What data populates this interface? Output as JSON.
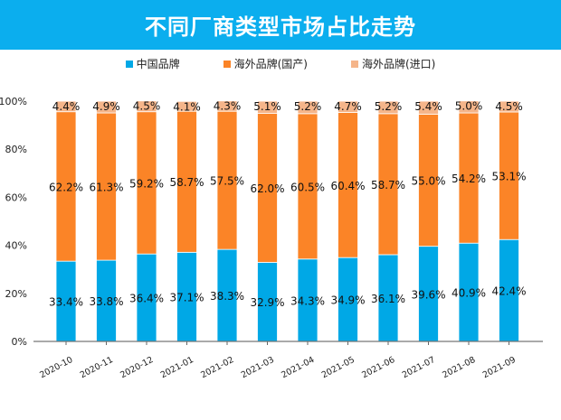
{
  "chart_data": {
    "type": "bar",
    "stacked": true,
    "title": "不同厂商类型市场占比走势",
    "xlabel": "",
    "ylabel": "",
    "ylim": [
      0,
      100
    ],
    "yticks": [
      "0%",
      "20%",
      "40%",
      "60%",
      "80%",
      "100%"
    ],
    "legend_position": "top",
    "grid": false,
    "categories": [
      "2020-10",
      "2020-11",
      "2020-12",
      "2021-01",
      "2021-02",
      "2021-03",
      "2021-04",
      "2021-05",
      "2021-06",
      "2021-07",
      "2021-08",
      "2021-09"
    ],
    "series": [
      {
        "name": "中国品牌",
        "color": "#00A8E6",
        "values": [
          33.4,
          33.8,
          36.4,
          37.1,
          38.3,
          32.9,
          34.3,
          34.9,
          36.1,
          39.6,
          40.9,
          42.4
        ]
      },
      {
        "name": "海外品牌(国产)",
        "color": "#FB8427",
        "values": [
          62.2,
          61.3,
          59.2,
          58.7,
          57.5,
          62.0,
          60.5,
          60.4,
          58.7,
          55.0,
          54.2,
          53.1
        ]
      },
      {
        "name": "海外品牌(进口)",
        "color": "#F5B58A",
        "values": [
          4.4,
          4.9,
          4.5,
          4.1,
          4.3,
          5.1,
          5.2,
          4.7,
          5.2,
          5.4,
          5.0,
          4.5
        ]
      }
    ]
  }
}
